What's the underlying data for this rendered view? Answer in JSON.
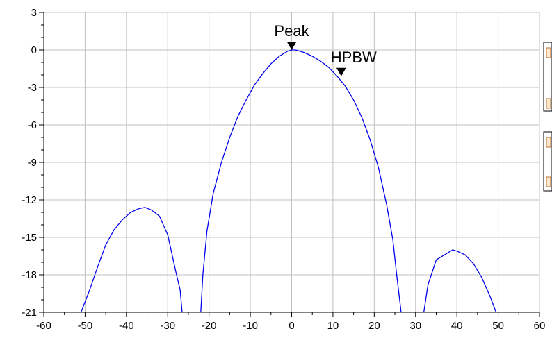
{
  "chart_data": {
    "type": "line",
    "title": "",
    "xlabel": "",
    "ylabel": "",
    "xlim": [
      -60,
      60
    ],
    "ylim": [
      -21,
      3
    ],
    "grid": true,
    "xticks": [
      -60,
      -50,
      -40,
      -30,
      -20,
      -10,
      0,
      10,
      20,
      30,
      40,
      50,
      60
    ],
    "yticks": [
      3,
      0,
      -3,
      -6,
      -9,
      -12,
      -15,
      -18,
      -21
    ],
    "xtick_labels": [
      "-60",
      "-50",
      "-40",
      "-30",
      "-20",
      "-10",
      "0",
      "10",
      "20",
      "30",
      "40",
      "50",
      "60"
    ],
    "ytick_labels": [
      "3",
      "0",
      "-3",
      "-6",
      "-9",
      "-12",
      "-15",
      "-18",
      "-21"
    ],
    "series": [
      {
        "color": "#0000ee",
        "segments": [
          [
            [
              -51,
              -21
            ],
            [
              -49,
              -19.3
            ],
            [
              -47,
              -17.4
            ],
            [
              -45,
              -15.6
            ],
            [
              -43,
              -14.4
            ],
            [
              -41,
              -13.6
            ],
            [
              -39,
              -13
            ],
            [
              -37,
              -12.7
            ],
            [
              -35.5,
              -12.6
            ],
            [
              -34,
              -12.8
            ],
            [
              -32,
              -13.3
            ],
            [
              -30,
              -14.8
            ],
            [
              -28,
              -17.8
            ],
            [
              -27,
              -19.2
            ],
            [
              -26.5,
              -21
            ]
          ],
          [
            [
              -22,
              -21
            ],
            [
              -21.5,
              -18
            ],
            [
              -20.5,
              -14.5
            ],
            [
              -19,
              -11.5
            ],
            [
              -17,
              -9
            ],
            [
              -15,
              -7
            ],
            [
              -13,
              -5.3
            ],
            [
              -11,
              -4
            ],
            [
              -9,
              -2.8
            ],
            [
              -7,
              -1.9
            ],
            [
              -5,
              -1.1
            ],
            [
              -3,
              -0.5
            ],
            [
              -1,
              -0.1
            ],
            [
              0,
              0
            ],
            [
              1,
              0
            ],
            [
              3,
              -0.2
            ],
            [
              5,
              -0.5
            ],
            [
              7,
              -0.9
            ],
            [
              9,
              -1.4
            ],
            [
              11,
              -2.1
            ],
            [
              13,
              -2.9
            ],
            [
              15,
              -4
            ],
            [
              17,
              -5.4
            ],
            [
              19,
              -7.2
            ],
            [
              21,
              -9.4
            ],
            [
              23,
              -12.4
            ],
            [
              24.5,
              -15.2
            ],
            [
              25.5,
              -18.2
            ],
            [
              26.5,
              -21
            ]
          ],
          [
            [
              32,
              -21
            ],
            [
              33,
              -18.8
            ],
            [
              35,
              -16.8
            ],
            [
              37,
              -16.4
            ],
            [
              39,
              -16
            ],
            [
              40,
              -16.1
            ],
            [
              42,
              -16.4
            ],
            [
              44,
              -17.1
            ],
            [
              46,
              -18.2
            ],
            [
              48,
              -19.7
            ],
            [
              49.5,
              -21
            ]
          ]
        ]
      }
    ],
    "markers": [
      {
        "label": "Peak",
        "x": 0,
        "y": 0
      },
      {
        "label": "HPBW",
        "x": 12,
        "y": -2.1
      }
    ]
  }
}
